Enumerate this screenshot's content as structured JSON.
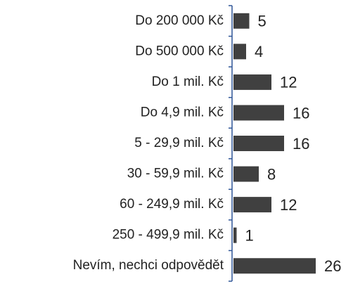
{
  "chart_data": {
    "type": "barh",
    "categories": [
      "Do 200 000 Kč",
      "Do 500 000 Kč",
      "Do 1 mil. Kč",
      "Do 4,9 mil. Kč",
      "5 - 29,9 mil. Kč",
      "30 - 59,9 mil. Kč",
      "60 - 249,9 mil. Kč",
      "250 - 499,9 mil. Kč",
      "Nevím, nechci odpovědět"
    ],
    "values": [
      5,
      4,
      12,
      16,
      16,
      8,
      12,
      1,
      26
    ],
    "color": "#404040",
    "axis_color": "#2f5597"
  }
}
